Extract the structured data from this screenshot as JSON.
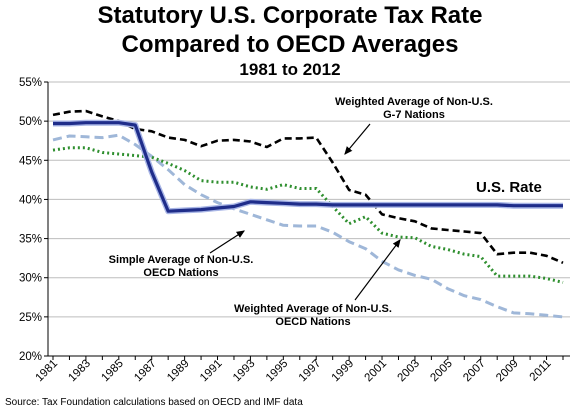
{
  "title_line1": "Statutory U.S. Corporate Tax Rate",
  "title_line2": "Compared to OECD Averages",
  "subtitle": "1981 to 2012",
  "source": "Source: Tax Foundation calculations based on OECD and IMF data",
  "chart_data": {
    "type": "line",
    "x": [
      1981,
      1982,
      1983,
      1984,
      1985,
      1986,
      1987,
      1988,
      1989,
      1990,
      1991,
      1992,
      1993,
      1994,
      1995,
      1996,
      1997,
      1998,
      1999,
      2000,
      2001,
      2002,
      2003,
      2004,
      2005,
      2006,
      2007,
      2008,
      2009,
      2010,
      2011,
      2012
    ],
    "ylim": [
      20,
      55
    ],
    "yticks": [
      20,
      25,
      30,
      35,
      40,
      45,
      50,
      55
    ],
    "ytick_labels": [
      "20%",
      "25%",
      "30%",
      "35%",
      "40%",
      "45%",
      "50%",
      "55%"
    ],
    "xtick_labels": [
      "1981",
      "1983",
      "1985",
      "1987",
      "1989",
      "1991",
      "1993",
      "1995",
      "1997",
      "1999",
      "2001",
      "2003",
      "2005",
      "2007",
      "2009",
      "2011"
    ],
    "series": [
      {
        "name": "U.S. Rate",
        "color": "#1f2d8a",
        "style": "solid",
        "values": [
          49.7,
          49.7,
          49.8,
          49.8,
          49.8,
          49.5,
          43.5,
          38.5,
          38.6,
          38.7,
          38.9,
          39.1,
          39.7,
          39.6,
          39.5,
          39.4,
          39.4,
          39.3,
          39.3,
          39.3,
          39.3,
          39.3,
          39.3,
          39.3,
          39.3,
          39.3,
          39.3,
          39.3,
          39.2,
          39.2,
          39.2,
          39.2
        ]
      },
      {
        "name": "Weighted Average of Non-U.S. G-7 Nations",
        "color": "#000000",
        "style": "dashed",
        "values": [
          50.8,
          51.2,
          51.3,
          50.6,
          50.0,
          49.0,
          48.7,
          47.9,
          47.6,
          46.8,
          47.5,
          47.6,
          47.4,
          46.7,
          47.8,
          47.8,
          47.9,
          44.7,
          41.2,
          40.6,
          38.1,
          37.6,
          37.2,
          36.3,
          36.1,
          35.9,
          35.7,
          33.0,
          33.2,
          33.2,
          32.8,
          31.9
        ]
      },
      {
        "name": "Simple Average of Non-U.S. OECD Nations",
        "color": "#9fb7d8",
        "style": "dashed",
        "values": [
          47.6,
          48.1,
          48.0,
          47.9,
          48.2,
          47.0,
          45.5,
          43.8,
          41.9,
          40.6,
          39.6,
          38.8,
          38.1,
          37.4,
          36.7,
          36.6,
          36.6,
          35.8,
          34.6,
          33.7,
          32.1,
          31.0,
          30.3,
          29.8,
          28.6,
          27.7,
          27.2,
          26.3,
          25.5,
          25.4,
          25.2,
          25.0
        ]
      },
      {
        "name": "Weighted Average of Non-U.S. OECD Nations",
        "color": "#2f8f2f",
        "style": "dotted",
        "values": [
          46.3,
          46.6,
          46.6,
          46.0,
          45.8,
          45.6,
          45.4,
          44.6,
          43.7,
          42.4,
          42.2,
          42.2,
          41.6,
          41.3,
          41.9,
          41.4,
          41.4,
          39.1,
          36.9,
          37.8,
          35.7,
          35.2,
          35.1,
          34.0,
          33.6,
          33.0,
          32.7,
          30.2,
          30.2,
          30.2,
          29.9,
          29.4
        ]
      }
    ]
  },
  "annotations": {
    "us_rate": "U.S. Rate",
    "g7_line1": "Weighted Average of Non-U.S.",
    "g7_line2": "G-7 Nations",
    "simple_line1": "Simple Average of Non-U.S.",
    "simple_line2": "OECD Nations",
    "weighted_line1": "Weighted Average of Non-U.S.",
    "weighted_line2": "OECD Nations"
  }
}
